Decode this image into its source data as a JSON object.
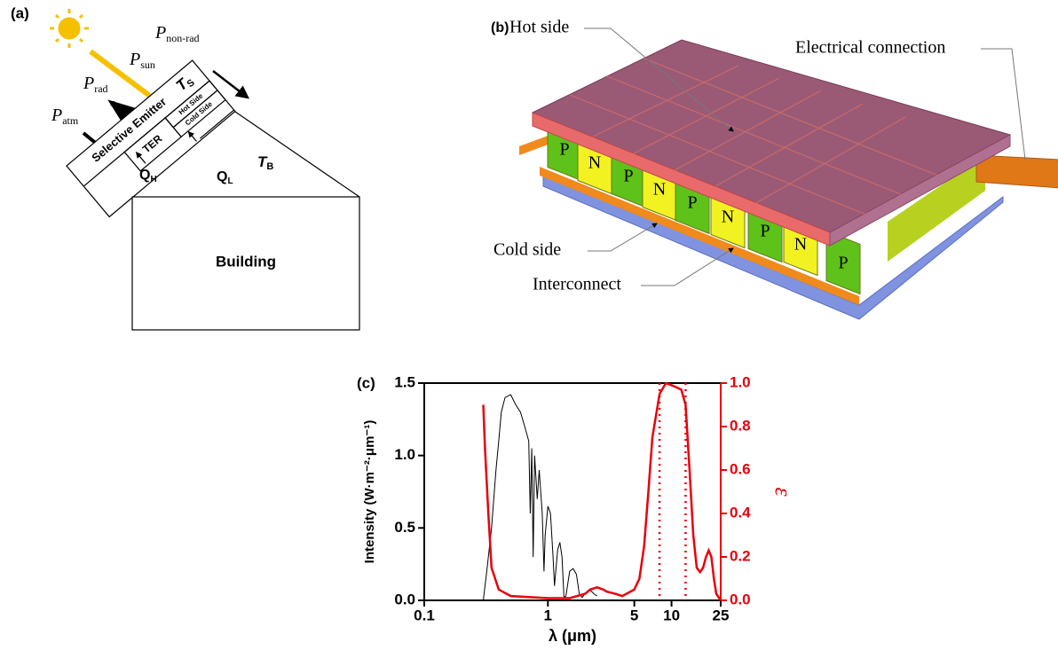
{
  "panel_a": {
    "label": "(a)",
    "p_non_rad": {
      "symbol": "P",
      "sub": "non-rad"
    },
    "p_sun": {
      "symbol": "P",
      "sub": "sun"
    },
    "p_rad": {
      "symbol": "P",
      "sub": "rad"
    },
    "p_atm": {
      "symbol": "P",
      "sub": "atm"
    },
    "emitter": "Selective Emitter",
    "t_s": {
      "symbol": "T",
      "sub": "S"
    },
    "hot_side": "Hot Side",
    "cold_side": "Cold Side",
    "ter": "TER",
    "q_h": {
      "symbol": "Q",
      "sub": "H"
    },
    "q_l": {
      "symbol": "Q",
      "sub": "L"
    },
    "t_b": {
      "symbol": "T",
      "sub": "B"
    },
    "building": "Building"
  },
  "panel_b": {
    "label": "(b)",
    "hot_side": "Hot side",
    "electrical_connection": "Electrical connection",
    "cold_side": "Cold side",
    "interconnect": "Interconnect",
    "leg_labels": [
      "P",
      "N",
      "P",
      "N",
      "P",
      "N",
      "P",
      "N",
      "P"
    ]
  },
  "chart_data": {
    "type": "line",
    "panel_label": "(c)",
    "x_label": "λ (μm)",
    "y_label": "Intensity (W·m⁻²·μm⁻¹)",
    "y2_label": "ε",
    "log_x": true,
    "xlim": [
      0.1,
      25
    ],
    "xticks": [
      0.1,
      1,
      5,
      10,
      25
    ],
    "ylim": [
      0,
      1.5
    ],
    "yticks": [
      {
        "value": 0,
        "label": "0.0"
      },
      0.5,
      {
        "value": 1,
        "label": "1.0"
      },
      1.5
    ],
    "y2lim": [
      0,
      1
    ],
    "y2ticks": [
      {
        "value": 0,
        "label": "0.0"
      },
      0.2,
      0.4,
      0.6,
      0.8,
      {
        "value": 1,
        "label": "1.0"
      }
    ],
    "vlines": [
      8,
      13
    ],
    "vline_color": "#e8000b",
    "series": [
      {
        "color": "#000000",
        "axis": "y",
        "x": [
          0.3,
          0.32,
          0.35,
          0.38,
          0.4,
          0.42,
          0.45,
          0.5,
          0.55,
          0.6,
          0.65,
          0.7,
          0.72,
          0.74,
          0.76,
          0.78,
          0.82,
          0.85,
          0.9,
          0.93,
          0.95,
          1.0,
          1.05,
          1.1,
          1.13,
          1.2,
          1.25,
          1.3,
          1.35,
          1.4,
          1.5,
          1.6,
          1.7,
          1.8,
          1.9,
          2.0,
          2.2,
          2.4,
          2.5
        ],
        "values": [
          0,
          0.2,
          0.5,
          0.9,
          1.1,
          1.3,
          1.4,
          1.42,
          1.35,
          1.3,
          1.2,
          1.1,
          0.6,
          1.05,
          0.3,
          1.0,
          0.7,
          0.9,
          0.6,
          0.2,
          0.45,
          0.65,
          0.6,
          0.3,
          0.1,
          0.35,
          0.4,
          0.3,
          0.02,
          0.03,
          0.2,
          0.22,
          0.18,
          0.04,
          0.02,
          0.05,
          0.07,
          0.04,
          0.03
        ]
      },
      {
        "color": "#e8000b",
        "axis": "y2",
        "x": [
          0.3,
          0.31,
          0.33,
          0.35,
          0.4,
          0.5,
          1,
          1.5,
          2,
          2.2,
          2.5,
          2.8,
          3,
          3.5,
          4,
          5,
          5.5,
          6,
          6.5,
          7,
          8,
          9,
          10,
          11,
          12,
          13,
          14,
          15,
          16,
          17,
          18,
          19,
          20,
          21,
          22,
          23,
          25
        ],
        "values": [
          0.9,
          0.7,
          0.4,
          0.15,
          0.05,
          0.02,
          0.01,
          0.01,
          0.03,
          0.05,
          0.06,
          0.05,
          0.04,
          0.03,
          0.02,
          0.05,
          0.1,
          0.25,
          0.5,
          0.75,
          0.95,
          1.0,
          0.99,
          0.98,
          0.97,
          0.9,
          0.6,
          0.3,
          0.15,
          0.13,
          0.15,
          0.2,
          0.23,
          0.2,
          0.1,
          0.03,
          0
        ]
      }
    ]
  }
}
